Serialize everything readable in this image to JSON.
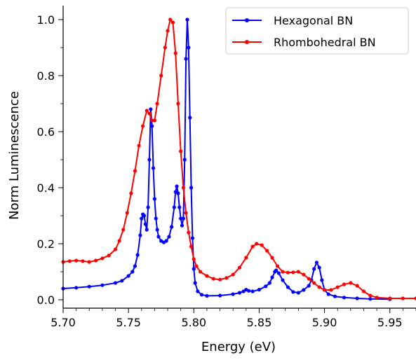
{
  "chart_data": {
    "type": "line",
    "title": "",
    "xlabel": "Energy (eV)",
    "ylabel": "Norm Luminescence",
    "xlim": [
      5.7,
      5.97
    ],
    "ylim": [
      -0.03,
      1.05
    ],
    "x_ticks": [
      "5.70",
      "5.75",
      "5.80",
      "5.85",
      "5.90",
      "5.95"
    ],
    "y_ticks": [
      "0.0",
      "0.2",
      "0.4",
      "0.6",
      "0.8",
      "1.0"
    ],
    "x_tick_values": [
      5.7,
      5.75,
      5.8,
      5.85,
      5.9,
      5.95
    ],
    "y_tick_values": [
      0.0,
      0.2,
      0.4,
      0.6,
      0.8,
      1.0
    ],
    "grid": false,
    "legend_position": "top-right",
    "series": [
      {
        "name": "Hexagonal BN",
        "color": "#0000ff",
        "points": [
          [
            5.7,
            0.04
          ],
          [
            5.71,
            0.043
          ],
          [
            5.72,
            0.047
          ],
          [
            5.73,
            0.052
          ],
          [
            5.74,
            0.06
          ],
          [
            5.745,
            0.068
          ],
          [
            5.75,
            0.085
          ],
          [
            5.753,
            0.1
          ],
          [
            5.755,
            0.12
          ],
          [
            5.757,
            0.16
          ],
          [
            5.759,
            0.23
          ],
          [
            5.76,
            0.29
          ],
          [
            5.761,
            0.305
          ],
          [
            5.762,
            0.3
          ],
          [
            5.763,
            0.27
          ],
          [
            5.764,
            0.25
          ],
          [
            5.765,
            0.33
          ],
          [
            5.766,
            0.5
          ],
          [
            5.767,
            0.68
          ],
          [
            5.768,
            0.62
          ],
          [
            5.769,
            0.47
          ],
          [
            5.77,
            0.36
          ],
          [
            5.771,
            0.29
          ],
          [
            5.772,
            0.25
          ],
          [
            5.773,
            0.225
          ],
          [
            5.775,
            0.21
          ],
          [
            5.777,
            0.205
          ],
          [
            5.779,
            0.21
          ],
          [
            5.781,
            0.225
          ],
          [
            5.783,
            0.26
          ],
          [
            5.785,
            0.33
          ],
          [
            5.786,
            0.385
          ],
          [
            5.787,
            0.405
          ],
          [
            5.788,
            0.38
          ],
          [
            5.789,
            0.33
          ],
          [
            5.79,
            0.29
          ],
          [
            5.791,
            0.265
          ],
          [
            5.792,
            0.29
          ],
          [
            5.793,
            0.5
          ],
          [
            5.794,
            0.86
          ],
          [
            5.795,
            1.0
          ],
          [
            5.796,
            0.9
          ],
          [
            5.797,
            0.65
          ],
          [
            5.798,
            0.4
          ],
          [
            5.799,
            0.22
          ],
          [
            5.8,
            0.11
          ],
          [
            5.801,
            0.06
          ],
          [
            5.803,
            0.03
          ],
          [
            5.806,
            0.018
          ],
          [
            5.81,
            0.014
          ],
          [
            5.82,
            0.015
          ],
          [
            5.83,
            0.02
          ],
          [
            5.835,
            0.025
          ],
          [
            5.838,
            0.03
          ],
          [
            5.84,
            0.036
          ],
          [
            5.842,
            0.032
          ],
          [
            5.845,
            0.03
          ],
          [
            5.85,
            0.036
          ],
          [
            5.855,
            0.048
          ],
          [
            5.858,
            0.06
          ],
          [
            5.86,
            0.08
          ],
          [
            5.862,
            0.1
          ],
          [
            5.863,
            0.105
          ],
          [
            5.865,
            0.095
          ],
          [
            5.868,
            0.07
          ],
          [
            5.872,
            0.045
          ],
          [
            5.876,
            0.028
          ],
          [
            5.88,
            0.025
          ],
          [
            5.884,
            0.035
          ],
          [
            5.888,
            0.05
          ],
          [
            5.89,
            0.07
          ],
          [
            5.892,
            0.11
          ],
          [
            5.894,
            0.133
          ],
          [
            5.896,
            0.115
          ],
          [
            5.898,
            0.07
          ],
          [
            5.9,
            0.035
          ],
          [
            5.903,
            0.02
          ],
          [
            5.908,
            0.012
          ],
          [
            5.915,
            0.008
          ],
          [
            5.925,
            0.005
          ],
          [
            5.935,
            0.003
          ],
          [
            5.95,
            0.002
          ]
        ]
      },
      {
        "name": "Rhombohedral BN",
        "color": "#ff0000",
        "points": [
          [
            5.7,
            0.135
          ],
          [
            5.705,
            0.138
          ],
          [
            5.71,
            0.14
          ],
          [
            5.715,
            0.138
          ],
          [
            5.72,
            0.135
          ],
          [
            5.725,
            0.14
          ],
          [
            5.73,
            0.148
          ],
          [
            5.735,
            0.158
          ],
          [
            5.74,
            0.18
          ],
          [
            5.743,
            0.21
          ],
          [
            5.746,
            0.25
          ],
          [
            5.749,
            0.31
          ],
          [
            5.752,
            0.38
          ],
          [
            5.755,
            0.46
          ],
          [
            5.758,
            0.55
          ],
          [
            5.761,
            0.62
          ],
          [
            5.764,
            0.675
          ],
          [
            5.766,
            0.665
          ],
          [
            5.768,
            0.64
          ],
          [
            5.77,
            0.64
          ],
          [
            5.772,
            0.7
          ],
          [
            5.775,
            0.8
          ],
          [
            5.778,
            0.9
          ],
          [
            5.78,
            0.96
          ],
          [
            5.782,
            1.0
          ],
          [
            5.784,
            0.99
          ],
          [
            5.786,
            0.88
          ],
          [
            5.788,
            0.7
          ],
          [
            5.79,
            0.53
          ],
          [
            5.792,
            0.4
          ],
          [
            5.794,
            0.31
          ],
          [
            5.796,
            0.24
          ],
          [
            5.798,
            0.19
          ],
          [
            5.8,
            0.145
          ],
          [
            5.802,
            0.12
          ],
          [
            5.805,
            0.1
          ],
          [
            5.81,
            0.085
          ],
          [
            5.815,
            0.075
          ],
          [
            5.82,
            0.072
          ],
          [
            5.825,
            0.078
          ],
          [
            5.83,
            0.09
          ],
          [
            5.835,
            0.115
          ],
          [
            5.84,
            0.15
          ],
          [
            5.845,
            0.19
          ],
          [
            5.848,
            0.2
          ],
          [
            5.852,
            0.195
          ],
          [
            5.856,
            0.175
          ],
          [
            5.86,
            0.15
          ],
          [
            5.864,
            0.12
          ],
          [
            5.868,
            0.1
          ],
          [
            5.872,
            0.097
          ],
          [
            5.876,
            0.098
          ],
          [
            5.88,
            0.1
          ],
          [
            5.884,
            0.09
          ],
          [
            5.888,
            0.075
          ],
          [
            5.892,
            0.06
          ],
          [
            5.896,
            0.045
          ],
          [
            5.9,
            0.035
          ],
          [
            5.905,
            0.035
          ],
          [
            5.91,
            0.045
          ],
          [
            5.915,
            0.055
          ],
          [
            5.92,
            0.06
          ],
          [
            5.925,
            0.05
          ],
          [
            5.93,
            0.03
          ],
          [
            5.935,
            0.015
          ],
          [
            5.94,
            0.008
          ],
          [
            5.95,
            0.005
          ],
          [
            5.96,
            0.005
          ],
          [
            5.97,
            0.005
          ]
        ]
      }
    ]
  }
}
